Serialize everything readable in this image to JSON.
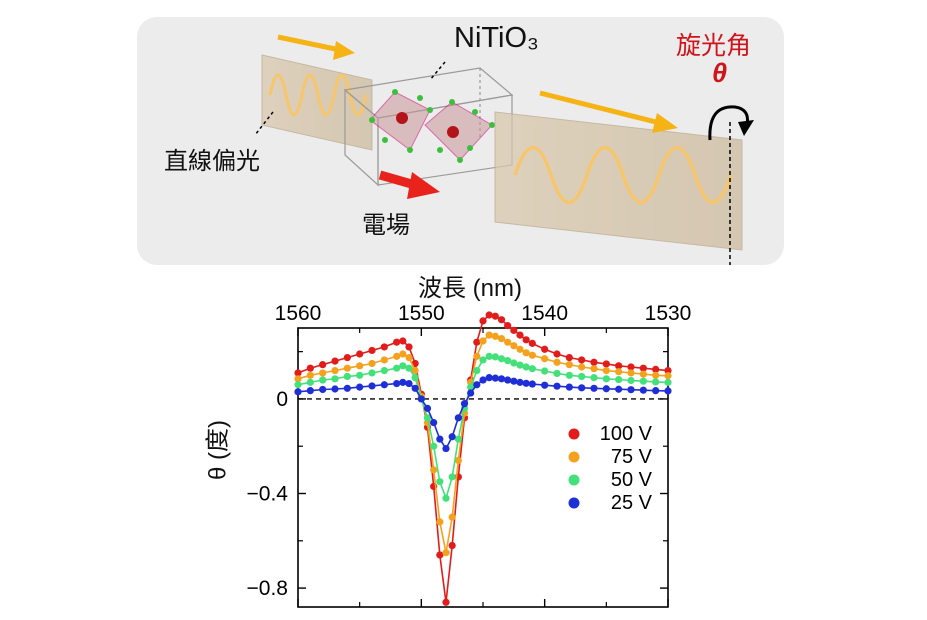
{
  "schematic": {
    "material_label": "NiTiO₃",
    "rotation_angle_label": "旋光角",
    "theta_symbol": "θ",
    "linear_polarization_label": "直線偏光",
    "electric_field_label": "電場",
    "colors": {
      "beam_arrow": "#f5b316",
      "field_arrow": "#e8231c",
      "wave": "#f7c66b",
      "label_red": "#d0141a"
    }
  },
  "chart_data": {
    "type": "scatter",
    "xlabel": "波長 (nm)",
    "ylabel": "θ (度)",
    "xlim": [
      1560,
      1530
    ],
    "ylim": [
      -0.88,
      0.3
    ],
    "x_axis_position": "top",
    "x_ticks": [
      "1560",
      "1550",
      "1540",
      "1530"
    ],
    "y_ticks": [
      "0",
      "−0.4",
      "−0.8"
    ],
    "zero_line": "dashed",
    "legend_position": "right",
    "series": [
      {
        "name": "100 V",
        "color": "#e21b1b",
        "x": [
          1560,
          1559,
          1558,
          1557,
          1556,
          1555,
          1554,
          1553,
          1552,
          1551.5,
          1551,
          1550.5,
          1550,
          1549.5,
          1549,
          1548.5,
          1548,
          1547.5,
          1547,
          1546.5,
          1546,
          1545.5,
          1545,
          1544.5,
          1544,
          1543.5,
          1543,
          1542.5,
          1542,
          1541.5,
          1541,
          1540,
          1539,
          1538,
          1537,
          1536,
          1535,
          1534,
          1533,
          1532,
          1531,
          1530
        ],
        "y": [
          0.11,
          0.13,
          0.145,
          0.16,
          0.175,
          0.19,
          0.205,
          0.22,
          0.24,
          0.245,
          0.22,
          0.15,
          0.02,
          -0.12,
          -0.37,
          -0.66,
          -0.86,
          -0.62,
          -0.33,
          -0.08,
          0.08,
          0.24,
          0.33,
          0.355,
          0.35,
          0.335,
          0.31,
          0.29,
          0.27,
          0.25,
          0.235,
          0.21,
          0.19,
          0.175,
          0.165,
          0.155,
          0.148,
          0.14,
          0.135,
          0.13,
          0.125,
          0.12
        ]
      },
      {
        "name": "75 V",
        "color": "#f4a21e",
        "x": [
          1560,
          1559,
          1558,
          1557,
          1556,
          1555,
          1554,
          1553,
          1552,
          1551.5,
          1551,
          1550.5,
          1550,
          1549.5,
          1549,
          1548.5,
          1548,
          1547.5,
          1547,
          1546.5,
          1546,
          1545.5,
          1545,
          1544.5,
          1544,
          1543.5,
          1543,
          1542.5,
          1542,
          1541.5,
          1541,
          1540,
          1539,
          1538,
          1537,
          1536,
          1535,
          1534,
          1533,
          1532,
          1531,
          1530
        ],
        "y": [
          0.085,
          0.1,
          0.11,
          0.12,
          0.13,
          0.14,
          0.15,
          0.165,
          0.18,
          0.19,
          0.175,
          0.12,
          0.01,
          -0.1,
          -0.3,
          -0.52,
          -0.65,
          -0.5,
          -0.26,
          -0.06,
          0.07,
          0.18,
          0.245,
          0.27,
          0.265,
          0.255,
          0.24,
          0.225,
          0.21,
          0.195,
          0.185,
          0.17,
          0.155,
          0.145,
          0.135,
          0.128,
          0.12,
          0.115,
          0.11,
          0.105,
          0.1,
          0.098
        ]
      },
      {
        "name": "50 V",
        "color": "#44e07a",
        "x": [
          1560,
          1559,
          1558,
          1557,
          1556,
          1555,
          1554,
          1553,
          1552,
          1551.5,
          1551,
          1550.5,
          1550,
          1549.5,
          1549,
          1548.5,
          1548,
          1547.5,
          1547,
          1546.5,
          1546,
          1545.5,
          1545,
          1544.5,
          1544,
          1543.5,
          1543,
          1542.5,
          1542,
          1541.5,
          1541,
          1540,
          1539,
          1538,
          1537,
          1536,
          1535,
          1534,
          1533,
          1532,
          1531,
          1530
        ],
        "y": [
          0.06,
          0.07,
          0.08,
          0.085,
          0.095,
          0.1,
          0.11,
          0.12,
          0.13,
          0.14,
          0.13,
          0.09,
          0.0,
          -0.08,
          -0.2,
          -0.35,
          -0.42,
          -0.33,
          -0.17,
          -0.04,
          0.05,
          0.12,
          0.165,
          0.18,
          0.178,
          0.17,
          0.162,
          0.152,
          0.143,
          0.135,
          0.128,
          0.118,
          0.108,
          0.1,
          0.095,
          0.09,
          0.085,
          0.082,
          0.078,
          0.075,
          0.072,
          0.07
        ]
      },
      {
        "name": "25 V",
        "color": "#1f2fd8",
        "x": [
          1560,
          1559,
          1558,
          1557,
          1556,
          1555,
          1554,
          1553,
          1552,
          1551.5,
          1551,
          1550.5,
          1550,
          1549.5,
          1549,
          1548.5,
          1548,
          1547.5,
          1547,
          1546.5,
          1546,
          1545.5,
          1545,
          1544.5,
          1544,
          1543.5,
          1543,
          1542.5,
          1542,
          1541.5,
          1541,
          1540,
          1539,
          1538,
          1537,
          1536,
          1535,
          1534,
          1533,
          1532,
          1531,
          1530
        ],
        "y": [
          0.03,
          0.035,
          0.04,
          0.042,
          0.045,
          0.05,
          0.055,
          0.06,
          0.065,
          0.07,
          0.065,
          0.045,
          0.0,
          -0.04,
          -0.1,
          -0.17,
          -0.21,
          -0.16,
          -0.08,
          -0.02,
          0.025,
          0.06,
          0.08,
          0.09,
          0.088,
          0.085,
          0.08,
          0.075,
          0.07,
          0.066,
          0.063,
          0.058,
          0.054,
          0.05,
          0.047,
          0.045,
          0.043,
          0.041,
          0.039,
          0.037,
          0.035,
          0.034
        ]
      }
    ]
  }
}
